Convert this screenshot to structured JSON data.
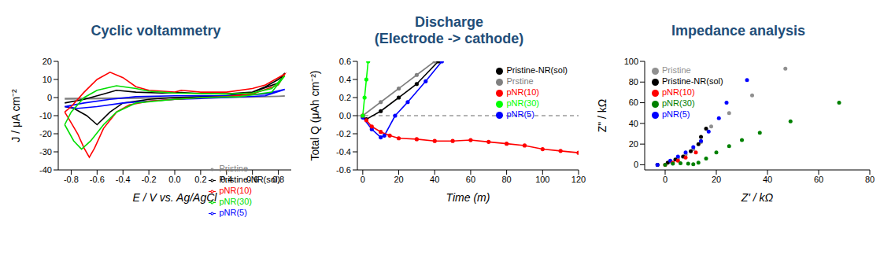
{
  "chart_data": [
    {
      "type": "line",
      "title": "Cyclic voltammetry",
      "x_label": "E / V vs. Ag/AgCl",
      "y_label": "J / μA cm⁻²",
      "xlim": [
        -0.9,
        0.9
      ],
      "xticks": [
        -0.8,
        -0.6,
        -0.4,
        -0.2,
        {
          "value": 0,
          "label": "0.0"
        },
        0.2,
        0.4,
        0.6,
        0.8
      ],
      "ylim": [
        -40,
        20
      ],
      "yticks": [
        -40,
        -30,
        -20,
        -10,
        0,
        10,
        20
      ],
      "grid": false,
      "legend": "lower right",
      "marker": "none",
      "line_style": "solid",
      "series": [
        {
          "name": "Pristine",
          "color": "#808080",
          "x": [
            -0.85,
            0,
            0.6,
            0.85,
            0.6,
            0,
            -0.85
          ],
          "values": [
            -0.5,
            0,
            0.3,
            0.8,
            0.2,
            -0.2,
            -0.8
          ]
        },
        {
          "name": "Pristine-NR(sol)",
          "color": "#000000",
          "x": [
            -0.85,
            -0.7,
            -0.55,
            -0.45,
            -0.3,
            -0.1,
            0.05,
            0.2,
            0.4,
            0.6,
            0.7,
            0.8,
            0.85,
            0.8,
            0.6,
            0.4,
            0.2,
            0,
            -0.2,
            -0.4,
            -0.5,
            -0.6,
            -0.68,
            -0.78,
            -0.85
          ],
          "values": [
            -3,
            -1,
            2,
            4,
            3,
            2.5,
            2.8,
            2.2,
            2,
            3,
            6,
            10,
            13.5,
            8,
            3,
            1,
            0.5,
            0,
            -1,
            -3,
            -8,
            -15,
            -10,
            -6,
            -5
          ]
        },
        {
          "name": "pNR(5)",
          "color": "#0000ff",
          "x": [
            -0.85,
            -0.7,
            -0.5,
            -0.3,
            0,
            0.4,
            0.7,
            0.85,
            0.7,
            0.4,
            0,
            -0.4,
            -0.6,
            -0.75,
            -0.85
          ],
          "values": [
            -5,
            -3,
            -1,
            0.5,
            1,
            1,
            2,
            4.5,
            1,
            0,
            -1,
            -3,
            -5,
            -6,
            -5
          ]
        },
        {
          "name": "pNR(10)",
          "color": "#ff0000",
          "x": [
            -0.85,
            -0.8,
            -0.7,
            -0.6,
            -0.5,
            -0.4,
            -0.3,
            -0.2,
            0,
            0.05,
            0.2,
            0.4,
            0.6,
            0.7,
            0.8,
            0.85,
            0.8,
            0.6,
            0.4,
            0.2,
            0,
            -0.2,
            -0.35,
            -0.45,
            -0.55,
            -0.62,
            -0.66,
            -0.7,
            -0.75,
            -0.8,
            -0.85
          ],
          "values": [
            -8,
            -5,
            3,
            10,
            14,
            11,
            6,
            4,
            3,
            4,
            3,
            3,
            5,
            7,
            11,
            13,
            7,
            2,
            0.5,
            0,
            -1,
            -2,
            -4,
            -8,
            -17,
            -28,
            -33,
            -28,
            -20,
            -14,
            -8
          ]
        },
        {
          "name": "pNR(30)",
          "color": "#00dd00",
          "x": [
            -0.85,
            -0.8,
            -0.7,
            -0.6,
            -0.45,
            -0.3,
            -0.2,
            0,
            0.4,
            0.6,
            0.75,
            0.85,
            0.75,
            0.5,
            0.2,
            0,
            -0.3,
            -0.45,
            -0.55,
            -0.65,
            -0.72,
            -0.78,
            -0.85
          ],
          "values": [
            -15,
            -8,
            0,
            4,
            6.5,
            5,
            3.5,
            2.5,
            2,
            2.5,
            5,
            12,
            3,
            0.5,
            0,
            -1,
            -3,
            -8,
            -15,
            -24,
            -28.5,
            -24,
            -15
          ]
        }
      ]
    },
    {
      "type": "scatter",
      "title": "Discharge\n(Electrode -> cathode)",
      "x_label": "Time (m)",
      "y_label": "Total Q (μAh cm⁻²)",
      "xlim": [
        -3,
        120
      ],
      "xticks": [
        0,
        20,
        40,
        60,
        80,
        100,
        120
      ],
      "ylim": [
        -0.6,
        0.6
      ],
      "yticks": [
        -0.6,
        -0.4,
        -0.2,
        {
          "value": 0,
          "label": "0.0"
        },
        0.2,
        0.4,
        0.6
      ],
      "grid": false,
      "legend": "upper right",
      "marker": "circle",
      "line_style": "solid",
      "reference_line": {
        "y": 0,
        "line_style": "dashed"
      },
      "series": [
        {
          "name": "Prstine",
          "color": "#808080",
          "x": [
            0,
            10,
            20,
            30,
            40
          ],
          "values": [
            0,
            0.15,
            0.3,
            0.45,
            0.6
          ]
        },
        {
          "name": "Pristine-NR(sol)",
          "color": "#000000",
          "x": [
            2,
            10,
            20,
            30,
            42
          ],
          "values": [
            -0.04,
            0.05,
            0.2,
            0.35,
            0.6
          ]
        },
        {
          "name": "pNR(5)",
          "color": "#0000ff",
          "x": [
            0,
            5,
            10,
            12,
            18,
            25,
            35,
            44
          ],
          "values": [
            -0.02,
            -0.15,
            -0.24,
            -0.22,
            0,
            0.15,
            0.38,
            0.6
          ]
        },
        {
          "name": "pNR(10)",
          "color": "#ff0000",
          "x": [
            0,
            2,
            5,
            10,
            15,
            20,
            30,
            40,
            50,
            60,
            70,
            80,
            90,
            100,
            110,
            120
          ],
          "values": [
            0,
            -0.05,
            -0.12,
            -0.18,
            -0.22,
            -0.25,
            -0.26,
            -0.28,
            -0.28,
            -0.27,
            -0.29,
            -0.31,
            -0.33,
            -0.37,
            -0.39,
            -0.41
          ]
        },
        {
          "name": "pNR(30)",
          "color": "#00ff00",
          "x": [
            0,
            1,
            2,
            3
          ],
          "values": [
            0,
            0.2,
            0.4,
            0.6
          ]
        }
      ]
    },
    {
      "type": "scatter",
      "title": "Impedance analysis",
      "x_label": "Z' / kΩ",
      "y_label": "Z\" / kΩ",
      "xlim": [
        -8,
        80
      ],
      "xticks": [
        0,
        20,
        40,
        60,
        80
      ],
      "ylim": [
        -5,
        100
      ],
      "yticks": [
        0,
        20,
        40,
        60,
        80,
        100
      ],
      "grid": false,
      "legend": "upper left",
      "marker": "circle",
      "line_style": "none",
      "series": [
        {
          "name": "Pristine",
          "color": "#909090",
          "x": [
            -3,
            2,
            5,
            8,
            11,
            14,
            18,
            25,
            34,
            47
          ],
          "values": [
            0,
            3,
            6,
            10,
            15,
            22,
            37,
            50,
            67,
            93
          ]
        },
        {
          "name": "Pristine-NR(sol)",
          "color": "#000000",
          "x": [
            -3,
            1,
            4,
            7,
            10,
            13,
            14,
            16
          ],
          "values": [
            0,
            2,
            5,
            8,
            13,
            20,
            27,
            35
          ]
        },
        {
          "name": "pNR(5)",
          "color": "#0000ff",
          "x": [
            -3,
            2,
            5,
            8,
            11,
            14,
            17,
            21,
            24,
            32
          ],
          "values": [
            0,
            4,
            8,
            12,
            17,
            23,
            32,
            45,
            60,
            82
          ]
        },
        {
          "name": "pNR(10)",
          "color": "#ff0000",
          "x": [
            0,
            3,
            5,
            8,
            12
          ],
          "values": [
            0,
            2,
            4,
            7,
            12
          ]
        },
        {
          "name": "pNR(30)",
          "color": "#008000",
          "x": [
            0,
            3,
            6,
            9,
            11,
            13,
            16,
            20,
            25,
            30,
            37,
            49,
            68
          ],
          "values": [
            0,
            1,
            1.5,
            1,
            0.5,
            2,
            6,
            12,
            18,
            24,
            31,
            42,
            60
          ]
        }
      ]
    }
  ]
}
